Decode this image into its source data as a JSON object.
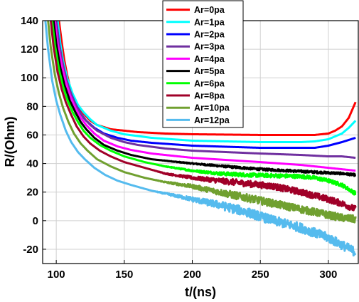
{
  "chart_data": {
    "type": "line",
    "xlabel": "t/(ns)",
    "ylabel": "R/(Ohm)",
    "xlim": [
      90,
      322
    ],
    "ylim": [
      -30,
      140
    ],
    "xticks": [
      100,
      150,
      200,
      250,
      300
    ],
    "yticks": [
      -20,
      0,
      20,
      40,
      60,
      80,
      100,
      120,
      140
    ],
    "grid": true,
    "legend_position": "top-center",
    "series": [
      {
        "name": "Ar=0pa",
        "color": "#ff0000",
        "noise": 0,
        "x": [
          102,
          104,
          106,
          108,
          110,
          113,
          116,
          120,
          125,
          130,
          140,
          150,
          160,
          180,
          200,
          250,
          290,
          300,
          305,
          310,
          315,
          320
        ],
        "y": [
          140,
          125,
          112,
          102,
          94,
          86,
          80,
          75,
          70,
          67,
          64,
          63,
          62,
          61,
          60.5,
          60,
          60,
          61,
          63,
          66,
          72,
          83
        ]
      },
      {
        "name": "Ar=1pa",
        "color": "#00ffff",
        "noise": 0,
        "x": [
          101,
          103,
          105,
          108,
          112,
          116,
          120,
          125,
          130,
          140,
          150,
          170,
          200,
          250,
          280,
          290,
          300,
          310,
          315,
          320
        ],
        "y": [
          140,
          124,
          112,
          100,
          89,
          81,
          76,
          71,
          67,
          63,
          60.5,
          58,
          56,
          55,
          55,
          55.5,
          57,
          61,
          65,
          70
        ]
      },
      {
        "name": "Ar=2pa",
        "color": "#0000ff",
        "noise": 0,
        "x": [
          100,
          102,
          104,
          107,
          110,
          114,
          118,
          122,
          128,
          135,
          145,
          155,
          170,
          200,
          250,
          290,
          300,
          310,
          320
        ],
        "y": [
          140,
          125,
          113,
          100,
          91,
          82,
          75,
          70,
          65,
          61,
          58,
          56,
          54.5,
          52.5,
          51,
          51,
          52.5,
          55,
          58
        ]
      },
      {
        "name": "Ar=3pa",
        "color": "#7030a0",
        "noise": 0,
        "x": [
          100,
          102,
          105,
          108,
          112,
          116,
          120,
          125,
          130,
          140,
          150,
          160,
          180,
          200,
          250,
          280,
          300,
          310,
          320
        ],
        "y": [
          140,
          124,
          109,
          97,
          86,
          78,
          72,
          67,
          63,
          58,
          55,
          53,
          50.5,
          49,
          47,
          46,
          45,
          45,
          44
        ]
      },
      {
        "name": "Ar=4pa",
        "color": "#ff00ff",
        "noise": 0,
        "x": [
          99,
          101,
          104,
          107,
          110,
          114,
          118,
          122,
          128,
          135,
          145,
          155,
          170,
          200,
          250,
          280,
          300,
          310,
          320
        ],
        "y": [
          140,
          124,
          109,
          97,
          88,
          79,
          72,
          67,
          61,
          56,
          52,
          49.5,
          47,
          44,
          41,
          39,
          37,
          36,
          35
        ]
      },
      {
        "name": "Ar=5pa",
        "color": "#000000",
        "noise": 0.8,
        "x": [
          98,
          100,
          103,
          106,
          110,
          114,
          118,
          122,
          128,
          135,
          145,
          155,
          170,
          200,
          230,
          250,
          270,
          290,
          300,
          310,
          320
        ],
        "y": [
          140,
          124,
          107,
          95,
          84,
          76,
          69,
          64,
          58,
          53,
          49,
          46,
          43,
          40,
          37.5,
          36,
          35,
          34,
          33.5,
          33,
          32
        ]
      },
      {
        "name": "Ar=6pa",
        "color": "#00ff00",
        "noise": 1.3,
        "x": [
          97,
          99,
          102,
          105,
          108,
          112,
          116,
          120,
          125,
          132,
          140,
          150,
          165,
          180,
          200,
          220,
          240,
          260,
          280,
          290,
          300,
          310,
          320
        ],
        "y": [
          140,
          123,
          106,
          94,
          85,
          76,
          69,
          63,
          58,
          53,
          49,
          45,
          41,
          38,
          35,
          33,
          32,
          31.5,
          31,
          30,
          28,
          25,
          19
        ]
      },
      {
        "name": "Ar=8pa",
        "color": "#a00028",
        "noise": 2.2,
        "x": [
          96,
          98,
          101,
          104,
          107,
          111,
          115,
          120,
          125,
          132,
          140,
          150,
          165,
          180,
          200,
          220,
          240,
          260,
          280,
          300,
          310,
          320
        ],
        "y": [
          140,
          122,
          104,
          92,
          83,
          74,
          66,
          59,
          54,
          49,
          45,
          41,
          37,
          33,
          30,
          28,
          26,
          24,
          20,
          15,
          12,
          8
        ]
      },
      {
        "name": "Ar=10pa",
        "color": "#70a030",
        "noise": 2.6,
        "x": [
          94,
          96,
          99,
          102,
          105,
          109,
          113,
          118,
          123,
          130,
          140,
          150,
          165,
          180,
          200,
          220,
          240,
          260,
          280,
          300,
          310,
          320
        ],
        "y": [
          140,
          121,
          102,
          89,
          79,
          69,
          61,
          54,
          49,
          43,
          38,
          34,
          30,
          27,
          24,
          20,
          16,
          12,
          8,
          4,
          2,
          1
        ]
      },
      {
        "name": "Ar=12pa",
        "color": "#55bbee",
        "noise": 3.2,
        "x": [
          92,
          94,
          97,
          100,
          103,
          107,
          111,
          116,
          121,
          128,
          136,
          145,
          155,
          170,
          185,
          200,
          220,
          240,
          260,
          280,
          300,
          310,
          320
        ],
        "y": [
          140,
          120,
          98,
          84,
          74,
          63,
          55,
          48,
          43,
          37,
          32,
          28,
          25,
          21,
          18,
          15,
          11,
          6,
          0,
          -5,
          -12,
          -17,
          -22
        ]
      }
    ]
  }
}
